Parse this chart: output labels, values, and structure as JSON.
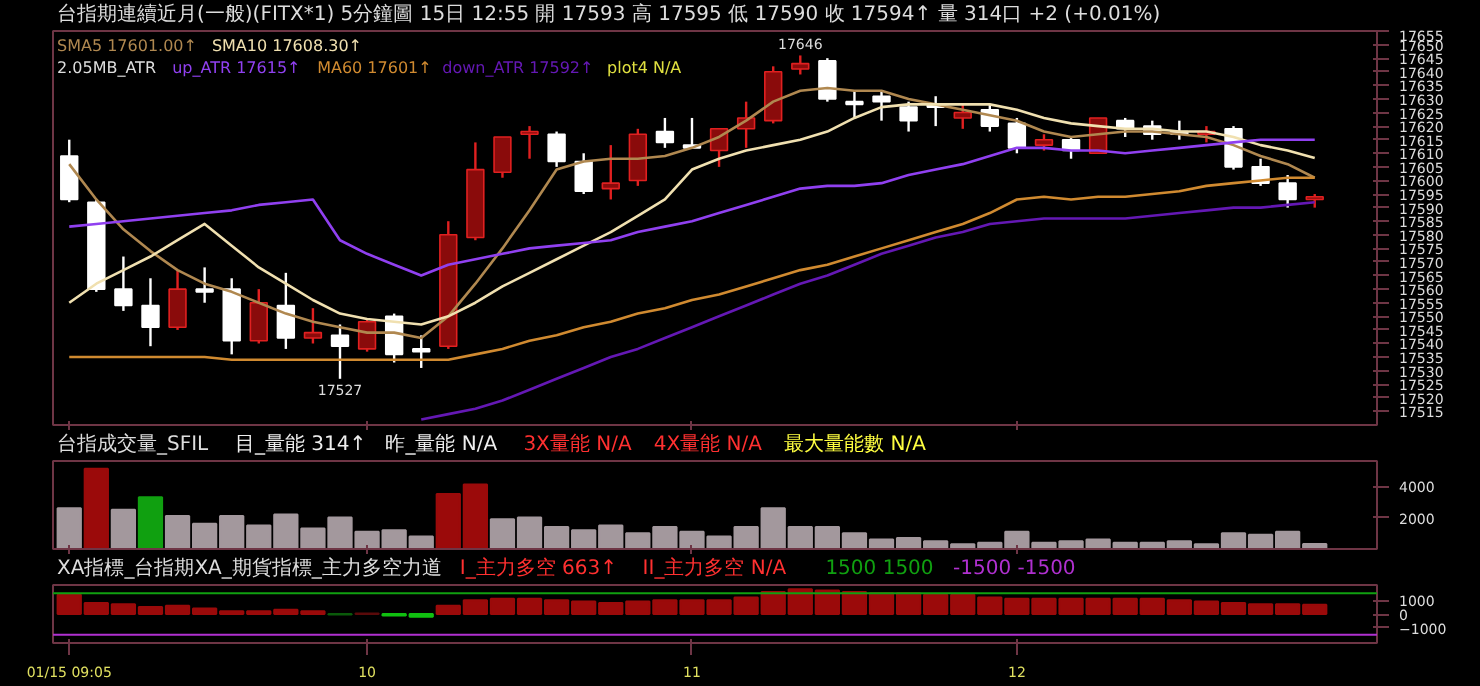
{
  "chart_data": [
    {
      "type": "candlestick",
      "title": "台指期連續近月(一般)(FITX*1)  5分鐘圖  15日 12:55  開 17593  高 17595  低 17590  收 17594↑  量 314口  +2 (+0.01%)",
      "ohlc": [
        [
          17609,
          17615,
          17592,
          17593
        ],
        [
          17592,
          17593,
          17559,
          17560
        ],
        [
          17560,
          17572,
          17552,
          17554
        ],
        [
          17554,
          17564,
          17539,
          17546
        ],
        [
          17546,
          17567,
          17545,
          17560
        ],
        [
          17560,
          17568,
          17555,
          17559
        ],
        [
          17560,
          17564,
          17536,
          17541
        ],
        [
          17541,
          17560,
          17540,
          17555
        ],
        [
          17554,
          17566,
          17538,
          17542
        ],
        [
          17542,
          17553,
          17540,
          17544
        ],
        [
          17543,
          17547,
          17527,
          17539
        ],
        [
          17538,
          17549,
          17537,
          17548
        ],
        [
          17550,
          17551,
          17533,
          17536
        ],
        [
          17538,
          17543,
          17531,
          17537
        ],
        [
          17539,
          17585,
          17538,
          17580
        ],
        [
          17579,
          17614,
          17578,
          17604
        ],
        [
          17603,
          17616,
          17601,
          17616
        ],
        [
          17617,
          17620,
          17608,
          17618
        ],
        [
          17617,
          17618,
          17605,
          17607
        ],
        [
          17607,
          17610,
          17595,
          17596
        ],
        [
          17597,
          17613,
          17593,
          17599
        ],
        [
          17600,
          17619,
          17598,
          17617
        ],
        [
          17618,
          17623,
          17612,
          17614
        ],
        [
          17613,
          17623,
          17612,
          17612
        ],
        [
          17611,
          17619,
          17605,
          17619
        ],
        [
          17619,
          17629,
          17612,
          17623
        ],
        [
          17622,
          17642,
          17621,
          17640
        ],
        [
          17641,
          17646,
          17639,
          17643
        ],
        [
          17644,
          17645,
          17629,
          17630
        ],
        [
          17629,
          17633,
          17623,
          17628
        ],
        [
          17631,
          17633,
          17622,
          17629
        ],
        [
          17627,
          17629,
          17618,
          17622
        ],
        [
          17628,
          17631,
          17620,
          17627
        ],
        [
          17623,
          17628,
          17619,
          17625
        ],
        [
          17626,
          17628,
          17618,
          17620
        ],
        [
          17621,
          17623,
          17610,
          17612
        ],
        [
          17613,
          17617,
          17611,
          17615
        ],
        [
          17615,
          17616,
          17608,
          17611
        ],
        [
          17610,
          17623,
          17610,
          17623
        ],
        [
          17622,
          17623,
          17616,
          17619
        ],
        [
          17620,
          17622,
          17615,
          17617
        ],
        [
          17618,
          17622,
          17615,
          17617
        ],
        [
          17617,
          17620,
          17614,
          17618
        ],
        [
          17619,
          17620,
          17604,
          17605
        ],
        [
          17605,
          17608,
          17598,
          17599
        ],
        [
          17599,
          17602,
          17590,
          17593
        ],
        [
          17593,
          17595,
          17590,
          17594
        ]
      ],
      "series": [
        {
          "type": "line",
          "name": "SMA5 17601.00↑",
          "color": "#b08850",
          "values": [
            17606,
            17593,
            17582,
            17574,
            17567,
            17562,
            17559,
            17555,
            17551,
            17548,
            17546,
            17544,
            17544,
            17542,
            17550,
            17562,
            17575,
            17589,
            17604,
            17607,
            17608,
            17608,
            17609,
            17612,
            17616,
            17622,
            17629,
            17633,
            17634,
            17633,
            17633,
            17630,
            17628,
            17626,
            17624,
            17622,
            17618,
            17616,
            17617,
            17618,
            17618,
            17617,
            17616,
            17613,
            17609,
            17606,
            17601
          ]
        },
        {
          "type": "line",
          "name": "SMA10 17608.30↑",
          "color": "#f0e0b0",
          "values": [
            17555,
            17562,
            17567,
            17572,
            17578,
            17584,
            17576,
            17568,
            17562,
            17556,
            17551,
            17549,
            17548,
            17547,
            17550,
            17555,
            17561,
            17566,
            17571,
            17576,
            17581,
            17587,
            17593,
            17604,
            17608,
            17611,
            17613,
            17615,
            17618,
            17623,
            17627,
            17628,
            17628,
            17628,
            17628,
            17626,
            17623,
            17621,
            17620,
            17619,
            17619,
            17618,
            17618,
            17616,
            17613,
            17611,
            17608.3
          ]
        },
        {
          "type": "line",
          "name": "up_ATR 17615↑",
          "color": "#9040f0",
          "values": [
            17583,
            17584,
            17585,
            17586,
            17587,
            17588,
            17589,
            17591,
            17592,
            17593,
            17578,
            17573,
            17569,
            17565,
            17569,
            17571,
            17573,
            17575,
            17576,
            17577,
            17578,
            17581,
            17583,
            17585,
            17588,
            17591,
            17594,
            17597,
            17598,
            17598,
            17599,
            17602,
            17604,
            17606,
            17609,
            17612,
            17612,
            17611,
            17611,
            17610,
            17611,
            17612,
            17613,
            17614,
            17615,
            17615,
            17615
          ]
        },
        {
          "type": "line",
          "name": "MA60 17601↑",
          "color": "#d08a30",
          "values": [
            17535,
            17535,
            17535,
            17535,
            17535,
            17535,
            17534,
            17534,
            17534,
            17534,
            17534,
            17534,
            17534,
            17534,
            17534,
            17536,
            17538,
            17541,
            17543,
            17546,
            17548,
            17551,
            17553,
            17556,
            17558,
            17561,
            17564,
            17567,
            17569,
            17572,
            17575,
            17578,
            17581,
            17584,
            17588,
            17593,
            17594,
            17593,
            17594,
            17594,
            17595,
            17596,
            17598,
            17599,
            17600,
            17601,
            17601
          ]
        },
        {
          "type": "line",
          "name": "down_ATR 17592↑",
          "color": "#6418b4",
          "values": [
            null,
            null,
            null,
            null,
            null,
            null,
            null,
            null,
            null,
            null,
            null,
            null,
            null,
            17512,
            17514,
            17516,
            17519,
            17523,
            17527,
            17531,
            17535,
            17538,
            17542,
            17546,
            17550,
            17554,
            17558,
            17562,
            17565,
            17569,
            17573,
            17576,
            17579,
            17581,
            17584,
            17585,
            17586,
            17586,
            17586,
            17586,
            17587,
            17588,
            17589,
            17590,
            17590,
            17591,
            17592
          ]
        }
      ],
      "legend": "top left",
      "legend_title": "2.05MB_ATR",
      "annotations": [
        {
          "text": "17646",
          "y": 17646
        },
        {
          "text": "17527",
          "y": 17527
        },
        "plot4 N/A"
      ],
      "ylim": [
        17510,
        17655
      ],
      "yticks": [
        17515,
        17520,
        17525,
        17530,
        17535,
        17540,
        17545,
        17550,
        17555,
        17560,
        17565,
        17570,
        17575,
        17580,
        17585,
        17590,
        17595,
        17600,
        17605,
        17610,
        17615,
        17620,
        17625,
        17630,
        17635,
        17640,
        17645,
        17650,
        17655
      ],
      "tick_labels": "y"
    },
    {
      "type": "bar",
      "title": "台指成交量_SFIL",
      "values": [
        2600,
        5100,
        2500,
        3300,
        2100,
        1600,
        2100,
        1500,
        2200,
        1300,
        2000,
        1100,
        1200,
        800,
        3500,
        4100,
        1900,
        2000,
        1400,
        1200,
        1500,
        1000,
        1400,
        1100,
        800,
        1400,
        2600,
        1400,
        1400,
        1000,
        600,
        700,
        500,
        300,
        400,
        1100,
        400,
        500,
        600,
        400,
        400,
        500,
        300,
        1000,
        900,
        1100,
        314
      ],
      "colors": [
        "#a3989d",
        "#9b0a0a",
        "#a3989d",
        "#10a010",
        "#a3989d",
        "#a3989d",
        "#a3989d",
        "#a3989d",
        "#a3989d",
        "#a3989d",
        "#a3989d",
        "#a3989d",
        "#a3989d",
        "#a3989d",
        "#9b0a0a",
        "#9b0a0a",
        "#a3989d",
        "#a3989d",
        "#a3989d",
        "#a3989d",
        "#a3989d",
        "#a3989d",
        "#a3989d",
        "#a3989d",
        "#a3989d",
        "#a3989d",
        "#a3989d",
        "#a3989d",
        "#a3989d",
        "#a3989d",
        "#a3989d",
        "#a3989d",
        "#a3989d",
        "#a3989d",
        "#a3989d",
        "#a3989d",
        "#a3989d",
        "#a3989d",
        "#a3989d",
        "#a3989d",
        "#a3989d",
        "#a3989d",
        "#a3989d",
        "#a3989d",
        "#a3989d",
        "#a3989d",
        "#a3989d"
      ],
      "annotations": [
        "目_量能 314↑",
        "昨_量能 N/A",
        "3X量能 N/A",
        "4X量能 N/A",
        "最大量能數 N/A"
      ],
      "ylim": [
        0,
        5600
      ],
      "yticks": [
        2000,
        4000
      ],
      "tick_labels": "y"
    },
    {
      "type": "bar",
      "title": "XA指標_台指期XA_期貨指標_主力多空力道",
      "categories": [
        "01/15 09:05",
        null,
        null,
        null,
        null,
        null,
        null,
        null,
        null,
        null,
        null,
        "10",
        null,
        null,
        null,
        null,
        null,
        null,
        null,
        null,
        null,
        null,
        null,
        "11",
        null,
        null,
        null,
        null,
        null,
        null,
        null,
        null,
        null,
        null,
        null,
        "12",
        null,
        null,
        null,
        null,
        null,
        null,
        null,
        null,
        null,
        null,
        null
      ],
      "values": [
        1400,
        800,
        700,
        500,
        600,
        400,
        200,
        200,
        300,
        200,
        -30,
        30,
        -100,
        -200,
        600,
        1000,
        1100,
        1100,
        1000,
        900,
        800,
        900,
        1000,
        1000,
        1000,
        1200,
        1600,
        1800,
        1700,
        1600,
        1500,
        1500,
        1400,
        1400,
        1200,
        1100,
        1100,
        1100,
        1100,
        1100,
        1100,
        1000,
        900,
        800,
        700,
        700,
        663
      ],
      "colors": [
        "#9b0a0a",
        "#9b0a0a",
        "#9b0a0a",
        "#9b0a0a",
        "#9b0a0a",
        "#9b0a0a",
        "#9b0a0a",
        "#9b0a0a",
        "#9b0a0a",
        "#9b0a0a",
        "#0a5a0a",
        "#5a0a0a",
        "#10c010",
        "#10c010",
        "#9b0a0a",
        "#9b0a0a",
        "#9b0a0a",
        "#9b0a0a",
        "#9b0a0a",
        "#9b0a0a",
        "#9b0a0a",
        "#9b0a0a",
        "#9b0a0a",
        "#9b0a0a",
        "#9b0a0a",
        "#9b0a0a",
        "#9b0a0a",
        "#9b0a0a",
        "#9b0a0a",
        "#9b0a0a",
        "#9b0a0a",
        "#9b0a0a",
        "#9b0a0a",
        "#9b0a0a",
        "#9b0a0a",
        "#9b0a0a",
        "#9b0a0a",
        "#9b0a0a",
        "#9b0a0a",
        "#9b0a0a",
        "#9b0a0a",
        "#9b0a0a",
        "#9b0a0a",
        "#9b0a0a",
        "#9b0a0a",
        "#9b0a0a",
        "#9b0a0a"
      ],
      "annotations": [
        "I_主力多空 663↑",
        "II_主力多空 N/A"
      ],
      "ref_lines": [
        {
          "axis": "y",
          "value": 1500,
          "label": "1500 1500",
          "color": "#10a010"
        },
        {
          "axis": "y",
          "value": -1500,
          "label": "-1500 -1500",
          "color": "#b030d0"
        }
      ],
      "ylim": [
        -2100,
        2100
      ],
      "yticks": [
        -1000,
        0,
        1000
      ]
    }
  ]
}
